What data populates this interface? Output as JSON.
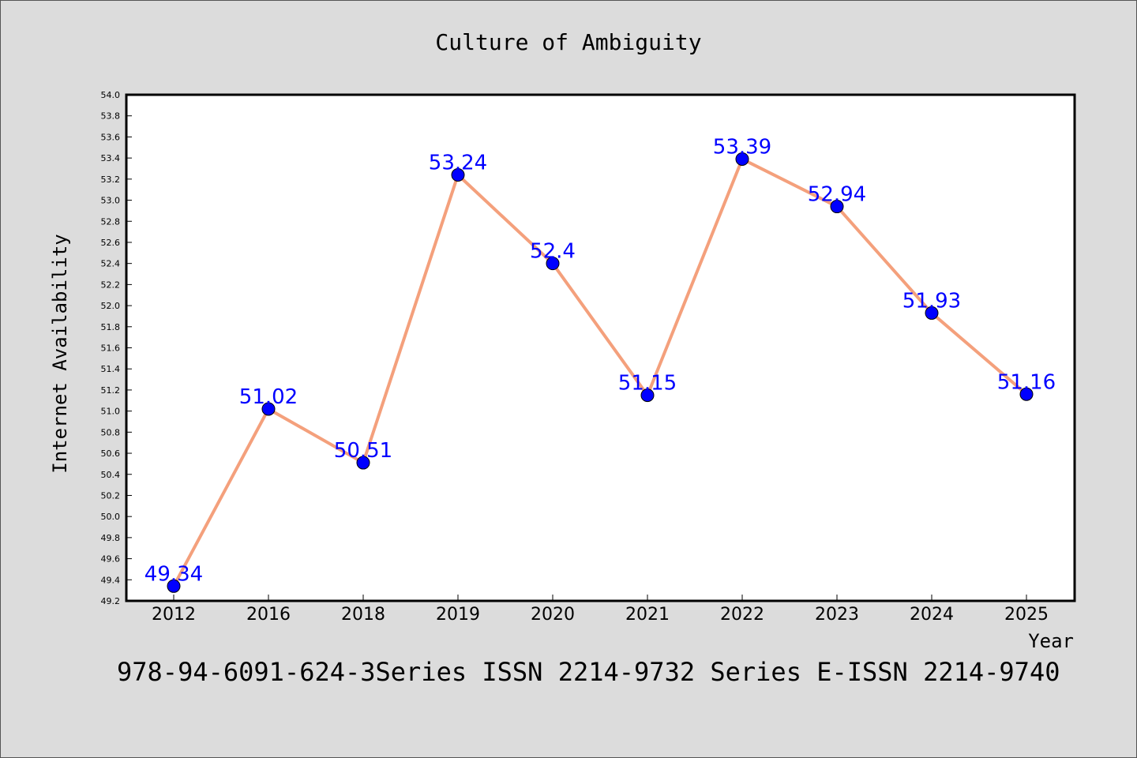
{
  "chart_data": {
    "type": "line",
    "title": "Culture of Ambiguity",
    "xlabel": "Year",
    "ylabel": "Internet Availability",
    "categories": [
      "2012",
      "2016",
      "2018",
      "2019",
      "2020",
      "2021",
      "2022",
      "2023",
      "2024",
      "2025"
    ],
    "series": [
      {
        "values": [
          49.34,
          51.02,
          50.51,
          53.24,
          52.4,
          51.15,
          53.39,
          52.94,
          51.93,
          51.16
        ],
        "line_color": "#f4a07c",
        "marker_color": "#0000ff"
      }
    ],
    "data_labels": [
      "49.34",
      "51.02",
      "50.51",
      "53.24",
      "52.4",
      "51.15",
      "53.39",
      "52.94",
      "51.93",
      "51.16"
    ],
    "ylim": [
      49.2,
      54.0
    ],
    "yticks": [
      "49.2",
      "49.4",
      "49.6",
      "49.8",
      "50.0",
      "50.2",
      "50.4",
      "50.6",
      "50.8",
      "51.0",
      "51.2",
      "51.4",
      "51.6",
      "51.8",
      "52.0",
      "52.2",
      "52.4",
      "52.6",
      "52.8",
      "53.0",
      "53.2",
      "53.4",
      "53.6",
      "53.8",
      "54.0"
    ],
    "grid": false,
    "data_label_color": "#0000ff"
  },
  "footer": {
    "text": "978-94-6091-624-3Series ISSN 2214-9732 Series E-ISSN 2214-9740"
  }
}
